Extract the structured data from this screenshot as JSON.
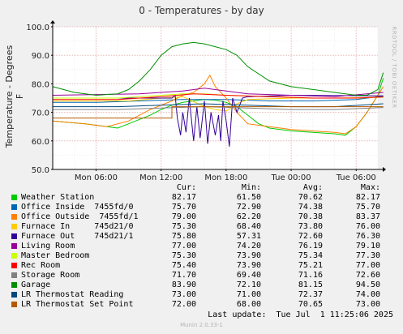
{
  "chart_data": {
    "type": "line",
    "title": "0 - Temperatures - by day",
    "ylabel": "Temperature - Degrees F",
    "ylim": [
      50,
      100
    ],
    "yticks": [
      "50.0",
      "60.0",
      "70.0",
      "80.0",
      "90.0",
      "100.0"
    ],
    "xlim_hours": [
      2,
      32
    ],
    "xticks": [
      {
        "label": "Mon 06:00",
        "hour": 6
      },
      {
        "label": "Mon 12:00",
        "hour": 12
      },
      {
        "label": "Mon 18:00",
        "hour": 18
      },
      {
        "label": "Tue 00:00",
        "hour": 24
      },
      {
        "label": "Tue 06:00",
        "hour": 30
      }
    ],
    "grid": true,
    "legend_position": "bottom",
    "columns": {
      "cur": "Cur:",
      "min": "Min:",
      "avg": "Avg:",
      "max": "Max:"
    },
    "series": [
      {
        "name": "Weather Station",
        "color": "#00cc00",
        "cur": "82.17",
        "min": "61.50",
        "avg": "70.62",
        "max": "82.17",
        "points": [
          [
            2,
            67
          ],
          [
            5,
            66
          ],
          [
            7,
            65
          ],
          [
            8,
            64.5
          ],
          [
            9,
            66
          ],
          [
            11,
            69
          ],
          [
            12,
            71
          ],
          [
            13,
            72.5
          ],
          [
            14,
            73.5
          ],
          [
            15,
            74
          ],
          [
            16,
            74.5
          ],
          [
            17,
            74.3
          ],
          [
            18,
            73.5
          ],
          [
            19,
            72
          ],
          [
            20,
            69
          ],
          [
            21,
            66
          ],
          [
            22,
            64.5
          ],
          [
            24,
            63.5
          ],
          [
            26,
            63
          ],
          [
            28,
            62.5
          ],
          [
            29,
            62
          ],
          [
            30,
            65
          ],
          [
            31,
            70
          ],
          [
            32,
            76
          ],
          [
            33,
            82
          ]
        ]
      },
      {
        "name": "Office Inside  7455fd/0",
        "color": "#0066b3",
        "cur": "75.70",
        "min": "72.90",
        "avg": "74.38",
        "max": "75.70",
        "points": [
          [
            2,
            73.5
          ],
          [
            6,
            73.5
          ],
          [
            10,
            74
          ],
          [
            14,
            74.5
          ],
          [
            18,
            74.5
          ],
          [
            22,
            74
          ],
          [
            26,
            74
          ],
          [
            30,
            74.5
          ],
          [
            33,
            75.7
          ]
        ]
      },
      {
        "name": "Office Outside  7455fd/1",
        "color": "#ff8000",
        "cur": "79.00",
        "min": "62.20",
        "avg": "70.38",
        "max": "83.37",
        "points": [
          [
            2,
            67
          ],
          [
            5,
            66
          ],
          [
            7,
            65
          ],
          [
            9,
            67
          ],
          [
            11,
            71
          ],
          [
            13,
            74
          ],
          [
            14,
            76
          ],
          [
            15,
            77
          ],
          [
            16,
            80
          ],
          [
            16.5,
            83
          ],
          [
            17,
            79
          ],
          [
            18,
            75
          ],
          [
            19,
            70
          ],
          [
            20,
            66
          ],
          [
            22,
            65
          ],
          [
            24,
            64
          ],
          [
            26,
            63.5
          ],
          [
            28,
            63
          ],
          [
            29,
            62.5
          ],
          [
            30,
            65
          ],
          [
            31,
            70
          ],
          [
            32,
            76
          ],
          [
            33,
            79
          ]
        ]
      },
      {
        "name": "Furnace In     745d21/0",
        "color": "#ffcc00",
        "cur": "75.30",
        "min": "68.40",
        "avg": "73.80",
        "max": "76.00",
        "points": [
          [
            2,
            74
          ],
          [
            9,
            74
          ],
          [
            12,
            75
          ],
          [
            14,
            75.5
          ],
          [
            16,
            72
          ],
          [
            17,
            71
          ],
          [
            18,
            70.5
          ],
          [
            19,
            73
          ],
          [
            20,
            74.5
          ],
          [
            24,
            75
          ],
          [
            28,
            75
          ],
          [
            33,
            75.3
          ]
        ]
      },
      {
        "name": "Furnace Out    745d21/1",
        "color": "#330099",
        "cur": "75.80",
        "min": "57.31",
        "avg": "72.60",
        "max": "76.30",
        "points": [
          [
            2,
            75
          ],
          [
            12,
            75
          ],
          [
            13,
            75
          ],
          [
            13.3,
            76
          ],
          [
            13.5,
            68
          ],
          [
            13.8,
            62
          ],
          [
            14,
            70
          ],
          [
            14.3,
            63
          ],
          [
            14.6,
            75
          ],
          [
            15,
            60
          ],
          [
            15.3,
            72
          ],
          [
            15.6,
            61
          ],
          [
            16,
            74
          ],
          [
            16.3,
            59
          ],
          [
            16.6,
            70
          ],
          [
            17,
            62
          ],
          [
            17.3,
            69
          ],
          [
            17.5,
            60
          ],
          [
            17.7,
            74
          ],
          [
            18,
            67
          ],
          [
            18.3,
            58
          ],
          [
            18.6,
            75
          ],
          [
            19,
            70
          ],
          [
            19.5,
            75
          ],
          [
            20,
            75.5
          ],
          [
            24,
            76
          ],
          [
            33,
            75.8
          ]
        ]
      },
      {
        "name": "Living Room",
        "color": "#990099",
        "cur": "77.00",
        "min": "74.20",
        "avg": "76.19",
        "max": "79.10",
        "points": [
          [
            2,
            76
          ],
          [
            10,
            76.5
          ],
          [
            14,
            77.5
          ],
          [
            16,
            78.5
          ],
          [
            18,
            77.5
          ],
          [
            20,
            76.5
          ],
          [
            24,
            76
          ],
          [
            28,
            75.5
          ],
          [
            33,
            77
          ]
        ]
      },
      {
        "name": "Master Bedroom",
        "color": "#ccff00",
        "cur": "75.30",
        "min": "73.90",
        "avg": "75.34",
        "max": "77.30",
        "points": [
          [
            2,
            75
          ],
          [
            8,
            75
          ],
          [
            12,
            76
          ],
          [
            14,
            76.5
          ],
          [
            16,
            76.5
          ],
          [
            18,
            76
          ],
          [
            22,
            75.5
          ],
          [
            26,
            75
          ],
          [
            30,
            75
          ],
          [
            33,
            75.3
          ]
        ]
      },
      {
        "name": "Rec Room",
        "color": "#ff0000",
        "cur": "75.40",
        "min": "73.90",
        "avg": "75.21",
        "max": "77.00",
        "points": [
          [
            2,
            74.5
          ],
          [
            8,
            74.5
          ],
          [
            12,
            75.5
          ],
          [
            15,
            76.5
          ],
          [
            18,
            76
          ],
          [
            22,
            75.5
          ],
          [
            26,
            75
          ],
          [
            30,
            75
          ],
          [
            33,
            75.4
          ]
        ]
      },
      {
        "name": "Storage Room",
        "color": "#808080",
        "cur": "71.70",
        "min": "69.40",
        "avg": "71.16",
        "max": "72.60",
        "points": [
          [
            2,
            71
          ],
          [
            8,
            71
          ],
          [
            12,
            71.5
          ],
          [
            16,
            72
          ],
          [
            20,
            71.5
          ],
          [
            24,
            71
          ],
          [
            28,
            71
          ],
          [
            33,
            71.7
          ]
        ]
      },
      {
        "name": "Garage",
        "color": "#008f00",
        "cur": "83.90",
        "min": "72.10",
        "avg": "81.15",
        "max": "94.50",
        "points": [
          [
            2,
            79
          ],
          [
            4,
            77
          ],
          [
            6,
            76
          ],
          [
            8,
            76.5
          ],
          [
            9,
            78
          ],
          [
            10,
            81
          ],
          [
            11,
            85
          ],
          [
            12,
            90
          ],
          [
            13,
            93
          ],
          [
            14,
            94
          ],
          [
            15,
            94.5
          ],
          [
            16,
            94
          ],
          [
            17,
            93
          ],
          [
            18,
            92
          ],
          [
            19,
            90
          ],
          [
            20,
            86
          ],
          [
            22,
            81
          ],
          [
            24,
            79
          ],
          [
            26,
            78
          ],
          [
            28,
            77
          ],
          [
            30,
            76
          ],
          [
            31,
            76
          ],
          [
            32,
            78
          ],
          [
            33,
            83.9
          ]
        ]
      },
      {
        "name": "LR Thermostat Reading",
        "color": "#00487d",
        "cur": "73.00",
        "min": "71.00",
        "avg": "72.37",
        "max": "74.00",
        "points": [
          [
            2,
            72
          ],
          [
            8,
            72
          ],
          [
            12,
            72.5
          ],
          [
            16,
            73
          ],
          [
            20,
            72.5
          ],
          [
            24,
            72
          ],
          [
            28,
            72
          ],
          [
            33,
            73
          ]
        ]
      },
      {
        "name": "LR Thermostat Set Point",
        "color": "#b35a00",
        "cur": "72.00",
        "min": "68.00",
        "avg": "70.65",
        "max": "73.00",
        "points": [
          [
            2,
            68
          ],
          [
            12,
            68
          ],
          [
            13,
            68
          ],
          [
            13,
            72
          ],
          [
            20,
            72
          ],
          [
            24,
            72
          ],
          [
            28,
            72
          ],
          [
            33,
            72
          ]
        ]
      }
    ]
  },
  "last_update": "Last update:  Tue Jul  1 11:25:06 2025",
  "side_watermark": "RRDTOOL / TOBI OETIKER",
  "munin_version": "Munin 2.0.33-1"
}
